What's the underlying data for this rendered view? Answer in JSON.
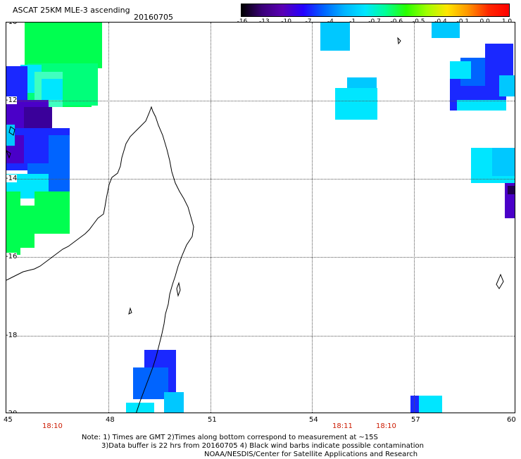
{
  "header": {
    "title": "ASCAT 25KM MLE-3 ascending",
    "date": "20160705"
  },
  "colorbar": {
    "labels": [
      "-16",
      "-13",
      "-10",
      "-7",
      "-4",
      "-1",
      "-0.7",
      "-0.6",
      "-0.5",
      "-0.4",
      "-0.1",
      "0.0",
      "1.0"
    ],
    "colors": [
      "#000000",
      "#3a0078",
      "#5a00b4",
      "#2400ff",
      "#0064ff",
      "#00b4ff",
      "#00e6ff",
      "#00ff96",
      "#28ff00",
      "#a0ff00",
      "#ffe600",
      "#ff9600",
      "#ff2800",
      "#ff0000"
    ]
  },
  "map": {
    "lat_labels": [
      "-10",
      "-12",
      "-14",
      "-16",
      "-18",
      "-20"
    ],
    "lon_labels": [
      "45",
      "48",
      "51",
      "54",
      "57",
      "60"
    ],
    "time_labels": [
      "18:10",
      "18:11",
      "18:10"
    ]
  },
  "notes": {
    "line1": "Note: 1) Times are GMT 2)Times along bottom correspond to measurement at ~15S",
    "line2": "3)Data buffer is 22 hrs from 20160705 4) Black wind barbs indicate possible contamination",
    "line3": "NOAA/NESDIS/Center for Satellite Applications and Research"
  }
}
